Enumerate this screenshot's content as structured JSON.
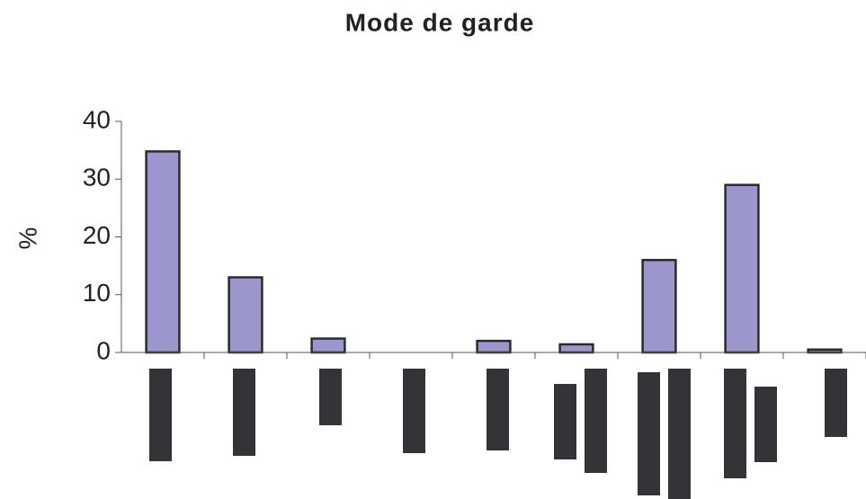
{
  "chart_data": {
    "type": "bar",
    "title": "Mode de garde",
    "y_label": "%",
    "categories": [
      null,
      null,
      null,
      null,
      null,
      null,
      null,
      null,
      null
    ],
    "values": [
      34.8,
      13,
      2.4,
      0,
      2,
      1.4,
      16,
      29,
      0.5
    ],
    "color": "#9b96cb",
    "edge_color": "#2b2b2b",
    "ylim": [
      0,
      40
    ],
    "yticks": [
      0,
      10,
      20,
      30,
      40
    ],
    "grid": false
  }
}
